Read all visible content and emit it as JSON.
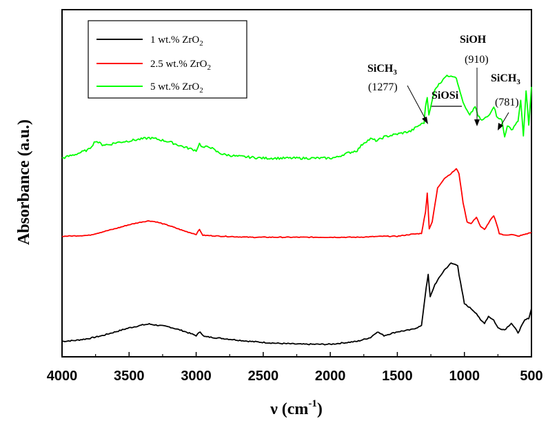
{
  "chart_data": {
    "type": "line",
    "title": "",
    "xlabel": "ν (cm",
    "xlabel_sup": "-1",
    "xlabel_close": ")",
    "ylabel": "Absorbance (a.u.)",
    "xlim": [
      4000,
      500
    ],
    "x_reversed": true,
    "xticks": [
      4000,
      3500,
      3000,
      2500,
      2000,
      1500,
      1000,
      500
    ],
    "ylim": [
      0,
      3.6
    ],
    "yticks_shown": false,
    "legend_position": "top-left",
    "series": [
      {
        "name": "1 wt.% ZrO",
        "name_sub": "2",
        "color": "#000000",
        "points": [
          [
            4000,
            0.16
          ],
          [
            3900,
            0.17
          ],
          [
            3800,
            0.19
          ],
          [
            3700,
            0.22
          ],
          [
            3600,
            0.26
          ],
          [
            3500,
            0.3
          ],
          [
            3400,
            0.33
          ],
          [
            3350,
            0.34
          ],
          [
            3300,
            0.33
          ],
          [
            3200,
            0.31
          ],
          [
            3100,
            0.27
          ],
          [
            3000,
            0.22
          ],
          [
            2970,
            0.26
          ],
          [
            2940,
            0.21
          ],
          [
            2800,
            0.19
          ],
          [
            2600,
            0.16
          ],
          [
            2400,
            0.14
          ],
          [
            2200,
            0.13
          ],
          [
            2000,
            0.13
          ],
          [
            1800,
            0.16
          ],
          [
            1700,
            0.2
          ],
          [
            1650,
            0.26
          ],
          [
            1600,
            0.22
          ],
          [
            1500,
            0.26
          ],
          [
            1400,
            0.28
          ],
          [
            1320,
            0.32
          ],
          [
            1285,
            0.72
          ],
          [
            1270,
            0.85
          ],
          [
            1255,
            0.62
          ],
          [
            1220,
            0.75
          ],
          [
            1150,
            0.9
          ],
          [
            1100,
            0.97
          ],
          [
            1050,
            0.95
          ],
          [
            1040,
            0.85
          ],
          [
            1000,
            0.55
          ],
          [
            950,
            0.5
          ],
          [
            910,
            0.45
          ],
          [
            880,
            0.38
          ],
          [
            850,
            0.35
          ],
          [
            820,
            0.42
          ],
          [
            781,
            0.38
          ],
          [
            750,
            0.3
          ],
          [
            700,
            0.28
          ],
          [
            650,
            0.35
          ],
          [
            600,
            0.25
          ],
          [
            550,
            0.38
          ],
          [
            520,
            0.4
          ],
          [
            500,
            0.5
          ]
        ]
      },
      {
        "name": "2.5 wt.% ZrO",
        "name_sub": "2",
        "color": "#ff0000",
        "points": [
          [
            4000,
            1.25
          ],
          [
            3800,
            1.26
          ],
          [
            3600,
            1.33
          ],
          [
            3500,
            1.37
          ],
          [
            3400,
            1.4
          ],
          [
            3350,
            1.41
          ],
          [
            3300,
            1.4
          ],
          [
            3200,
            1.36
          ],
          [
            3100,
            1.31
          ],
          [
            3000,
            1.27
          ],
          [
            2975,
            1.32
          ],
          [
            2950,
            1.26
          ],
          [
            2800,
            1.25
          ],
          [
            2600,
            1.24
          ],
          [
            2400,
            1.24
          ],
          [
            2200,
            1.24
          ],
          [
            2000,
            1.24
          ],
          [
            1800,
            1.24
          ],
          [
            1600,
            1.25
          ],
          [
            1500,
            1.25
          ],
          [
            1400,
            1.27
          ],
          [
            1320,
            1.28
          ],
          [
            1290,
            1.5
          ],
          [
            1277,
            1.7
          ],
          [
            1262,
            1.33
          ],
          [
            1240,
            1.4
          ],
          [
            1200,
            1.75
          ],
          [
            1150,
            1.85
          ],
          [
            1100,
            1.9
          ],
          [
            1060,
            1.95
          ],
          [
            1040,
            1.9
          ],
          [
            1010,
            1.6
          ],
          [
            980,
            1.4
          ],
          [
            950,
            1.38
          ],
          [
            910,
            1.45
          ],
          [
            880,
            1.35
          ],
          [
            850,
            1.32
          ],
          [
            800,
            1.43
          ],
          [
            781,
            1.46
          ],
          [
            760,
            1.38
          ],
          [
            740,
            1.28
          ],
          [
            700,
            1.26
          ],
          [
            650,
            1.27
          ],
          [
            600,
            1.25
          ],
          [
            550,
            1.27
          ],
          [
            500,
            1.29
          ]
        ]
      },
      {
        "name": "5 wt.% ZrO",
        "name_sub": "2",
        "color": "#00ff00",
        "points": [
          [
            4000,
            2.06
          ],
          [
            3900,
            2.1
          ],
          [
            3800,
            2.15
          ],
          [
            3750,
            2.24
          ],
          [
            3700,
            2.2
          ],
          [
            3650,
            2.2
          ],
          [
            3600,
            2.22
          ],
          [
            3500,
            2.24
          ],
          [
            3400,
            2.26
          ],
          [
            3350,
            2.27
          ],
          [
            3300,
            2.26
          ],
          [
            3200,
            2.23
          ],
          [
            3100,
            2.18
          ],
          [
            3000,
            2.14
          ],
          [
            2975,
            2.21
          ],
          [
            2950,
            2.17
          ],
          [
            2900,
            2.18
          ],
          [
            2850,
            2.13
          ],
          [
            2800,
            2.1
          ],
          [
            2700,
            2.08
          ],
          [
            2600,
            2.07
          ],
          [
            2500,
            2.06
          ],
          [
            2400,
            2.06
          ],
          [
            2300,
            2.06
          ],
          [
            2200,
            2.06
          ],
          [
            2100,
            2.06
          ],
          [
            2000,
            2.06
          ],
          [
            1950,
            2.07
          ],
          [
            1900,
            2.1
          ],
          [
            1800,
            2.14
          ],
          [
            1750,
            2.22
          ],
          [
            1700,
            2.26
          ],
          [
            1650,
            2.24
          ],
          [
            1600,
            2.28
          ],
          [
            1500,
            2.31
          ],
          [
            1400,
            2.34
          ],
          [
            1350,
            2.39
          ],
          [
            1300,
            2.43
          ],
          [
            1290,
            2.6
          ],
          [
            1277,
            2.7
          ],
          [
            1265,
            2.5
          ],
          [
            1220,
            2.78
          ],
          [
            1180,
            2.84
          ],
          [
            1150,
            2.9
          ],
          [
            1100,
            2.92
          ],
          [
            1060,
            2.9
          ],
          [
            1040,
            2.78
          ],
          [
            1000,
            2.6
          ],
          [
            960,
            2.5
          ],
          [
            920,
            2.6
          ],
          [
            900,
            2.5
          ],
          [
            870,
            2.45
          ],
          [
            820,
            2.5
          ],
          [
            781,
            2.6
          ],
          [
            760,
            2.5
          ],
          [
            720,
            2.45
          ],
          [
            700,
            2.28
          ],
          [
            680,
            2.4
          ],
          [
            650,
            2.35
          ],
          [
            600,
            2.45
          ],
          [
            580,
            2.65
          ],
          [
            560,
            2.3
          ],
          [
            540,
            2.75
          ],
          [
            520,
            2.4
          ],
          [
            500,
            2.8
          ]
        ]
      }
    ],
    "annotations": [
      {
        "label": "SiCH",
        "label_sub": "3",
        "value": "(1277)",
        "x": 1277
      },
      {
        "label": "SiOSi",
        "underlined": true
      },
      {
        "label": "SiOH",
        "value": "(910)",
        "x": 910
      },
      {
        "label": "SiCH",
        "label_sub": "3",
        "value": "(781)",
        "x": 781
      }
    ]
  }
}
